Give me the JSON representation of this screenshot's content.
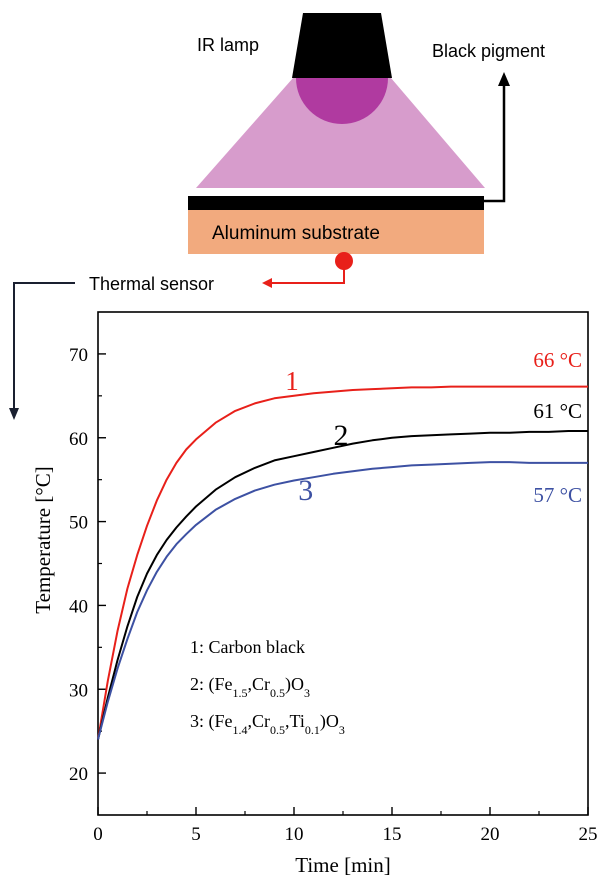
{
  "diagram": {
    "lamp_label": "IR lamp",
    "pigment_label": "Black pigment",
    "substrate_label": "Aluminum substrate",
    "sensor_label": "Thermal sensor",
    "colors": {
      "lamp": "#000000",
      "lamp_glow": "#b03aa0",
      "beam": "#d79ccc",
      "pigment_layer": "#000000",
      "substrate": "#f2aa7e",
      "sensor": "#e8201a",
      "sensor_arrow": "#e8201a",
      "pointer_arrow": "#000000",
      "sensor_pointer": "#1a2030"
    }
  },
  "chart_data": {
    "type": "line",
    "xlabel": "Time [min]",
    "ylabel": "Temperature [°C]",
    "xlim": [
      0,
      25
    ],
    "ylim": [
      15,
      75
    ],
    "xticks": [
      0,
      5,
      10,
      15,
      20,
      25
    ],
    "yticks": [
      20,
      30,
      40,
      50,
      60,
      70
    ],
    "grid": false,
    "series": [
      {
        "name": "1",
        "legend": "1: Carbon black",
        "end_label": "66 °C",
        "color": "#e8201a",
        "x": [
          0,
          0.5,
          1,
          1.5,
          2,
          2.5,
          3,
          3.5,
          4,
          4.5,
          5,
          6,
          7,
          8,
          9,
          10,
          11,
          12,
          13,
          14,
          15,
          16,
          17,
          18,
          19,
          20,
          21,
          22,
          23,
          24,
          25
        ],
        "y": [
          24,
          31,
          37,
          42,
          46,
          49.5,
          52.5,
          55,
          57,
          58.6,
          59.8,
          61.8,
          63.2,
          64.1,
          64.7,
          65,
          65.3,
          65.5,
          65.7,
          65.8,
          65.9,
          66,
          66,
          66.1,
          66.1,
          66.1,
          66.1,
          66.1,
          66.1,
          66.1,
          66.1
        ]
      },
      {
        "name": "2",
        "legend": "2: (Fe1.5,Cr0.5)O3",
        "end_label": "61 °C",
        "color": "#000000",
        "x": [
          0,
          0.5,
          1,
          1.5,
          2,
          2.5,
          3,
          3.5,
          4,
          4.5,
          5,
          6,
          7,
          8,
          9,
          10,
          11,
          12,
          13,
          14,
          15,
          16,
          17,
          18,
          19,
          20,
          21,
          22,
          23,
          24,
          25
        ],
        "y": [
          24,
          29,
          33.5,
          37.5,
          41,
          43.8,
          46,
          47.8,
          49.3,
          50.6,
          51.8,
          53.8,
          55.3,
          56.4,
          57.3,
          57.8,
          58.3,
          58.8,
          59.3,
          59.7,
          60,
          60.2,
          60.3,
          60.4,
          60.5,
          60.6,
          60.6,
          60.7,
          60.7,
          60.8,
          60.8
        ]
      },
      {
        "name": "3",
        "legend": "3: (Fe1.4,Cr0.5,Ti0.1)O3",
        "end_label": "57 °C",
        "color": "#3d51a3",
        "x": [
          0,
          0.5,
          1,
          1.5,
          2,
          2.5,
          3,
          3.5,
          4,
          4.5,
          5,
          6,
          7,
          8,
          9,
          10,
          11,
          12,
          13,
          14,
          15,
          16,
          17,
          18,
          19,
          20,
          21,
          22,
          23,
          24,
          25
        ],
        "y": [
          24,
          28.5,
          32.5,
          36,
          39.2,
          41.8,
          44,
          45.8,
          47.3,
          48.5,
          49.6,
          51.4,
          52.7,
          53.7,
          54.4,
          54.9,
          55.3,
          55.7,
          56,
          56.3,
          56.5,
          56.7,
          56.8,
          56.9,
          57,
          57.1,
          57.1,
          57,
          57,
          57,
          57
        ]
      }
    ]
  }
}
